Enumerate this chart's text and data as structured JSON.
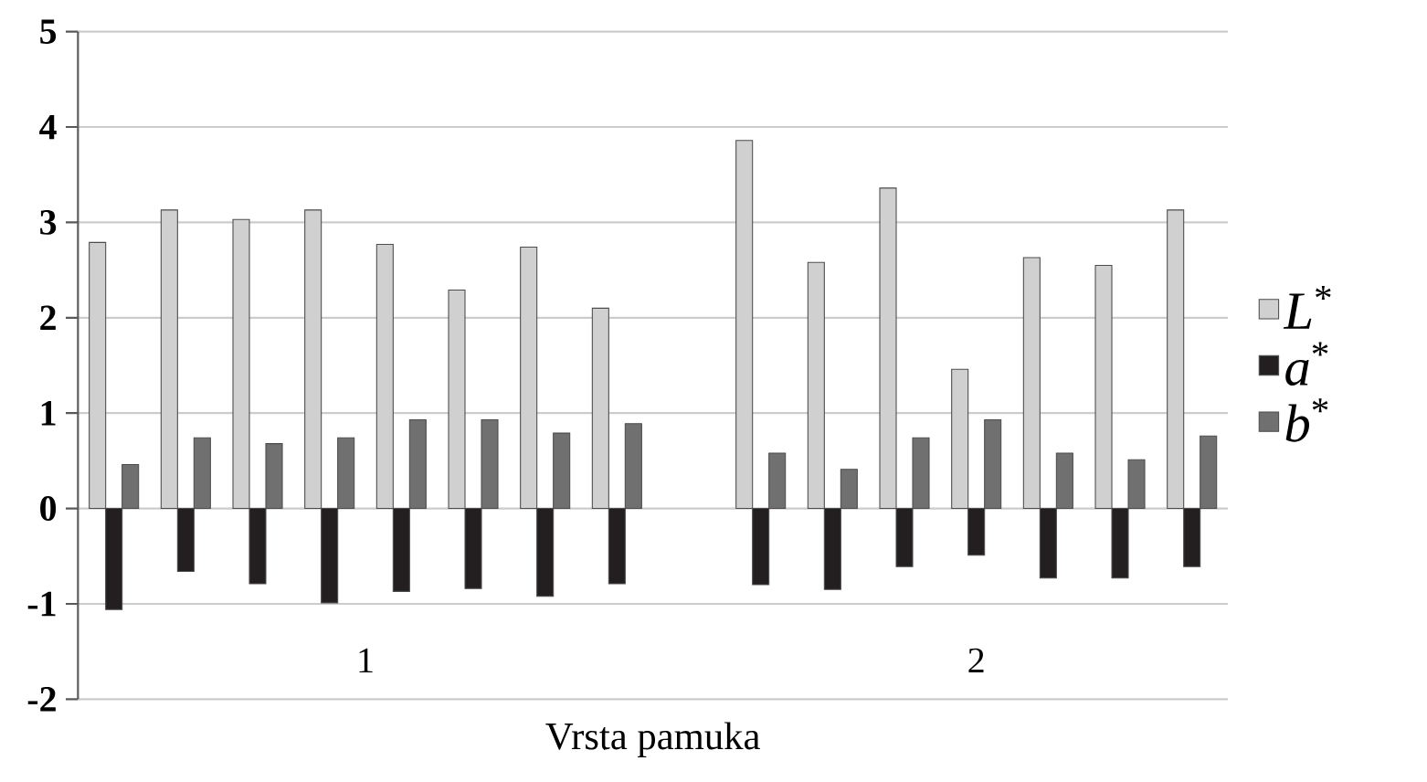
{
  "chart_data": {
    "type": "bar",
    "xlabel": "Vrsta pamuka",
    "categories": [
      null,
      null,
      null,
      null,
      null,
      null,
      null,
      null,
      null,
      null,
      null,
      null,
      null,
      null,
      null,
      null
    ],
    "series": [
      {
        "name": "*L*$^{*}$",
        "color": "#d0d0d0",
        "values": [
          2.79,
          3.13,
          3.03,
          3.13,
          2.77,
          2.29,
          2.74,
          2.1,
          null,
          3.86,
          2.58,
          3.36,
          1.46,
          2.63,
          2.55,
          3.13
        ]
      },
      {
        "name": "*a*$^{*}$",
        "color": "#231f20",
        "values": [
          -1.06,
          -0.66,
          -0.79,
          -0.99,
          -0.87,
          -0.84,
          -0.92,
          -0.79,
          null,
          -0.8,
          -0.85,
          -0.61,
          -0.49,
          -0.73,
          -0.73,
          -0.61
        ]
      },
      {
        "name": "*b*$^{*}$",
        "color": "#707070",
        "values": [
          0.46,
          0.74,
          0.68,
          0.74,
          0.93,
          0.93,
          0.79,
          0.89,
          null,
          0.58,
          0.41,
          0.74,
          0.93,
          0.58,
          0.51,
          0.76
        ]
      }
    ],
    "annotations": [
      "1",
      "2"
    ],
    "ylim": [
      -2,
      5
    ],
    "yticks": [
      -2,
      -1,
      0,
      1,
      2,
      3,
      4,
      5
    ],
    "grid": "y",
    "legend": "right"
  }
}
